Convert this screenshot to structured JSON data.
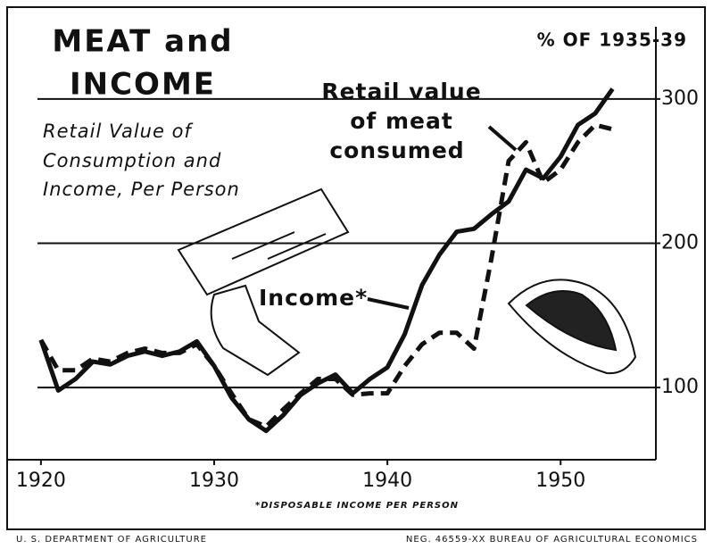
{
  "chart_data": {
    "type": "line",
    "title": [
      "MEAT and",
      "INCOME"
    ],
    "subtitle": [
      "Retail Value of",
      "Consumption and",
      "Income, Per Person"
    ],
    "y_axis_label": "% OF 1935-39",
    "footnote": "*DISPOSABLE INCOME PER PERSON",
    "source_left": "U. S. DEPARTMENT OF AGRICULTURE",
    "source_right": "NEG. 46559-XX   BUREAU OF AGRICULTURAL ECONOMICS",
    "x": [
      1920,
      1921,
      1922,
      1923,
      1924,
      1925,
      1926,
      1927,
      1928,
      1929,
      1930,
      1931,
      1932,
      1933,
      1934,
      1935,
      1936,
      1937,
      1938,
      1939,
      1940,
      1941,
      1942,
      1943,
      1944,
      1945,
      1946,
      1947,
      1948,
      1949,
      1950,
      1951,
      1952,
      1953
    ],
    "series": [
      {
        "name": [
          "Income*"
        ],
        "color": "#111",
        "dashed": false,
        "values": [
          133,
          98,
          106,
          118,
          116,
          122,
          125,
          122,
          125,
          132,
          115,
          93,
          78,
          70,
          81,
          95,
          103,
          109,
          96,
          106,
          114,
          137,
          171,
          192,
          208,
          210,
          220,
          229,
          251,
          245,
          260,
          282,
          290,
          307
        ]
      },
      {
        "name": [
          "Retail value",
          "of meat",
          "consumed"
        ],
        "color": "#111",
        "dashed": true,
        "values": [
          133,
          112,
          112,
          120,
          118,
          124,
          127,
          124,
          124,
          130,
          115,
          96,
          78,
          73,
          85,
          96,
          106,
          106,
          95,
          96,
          96,
          115,
          130,
          138,
          138,
          127,
          189,
          257,
          270,
          242,
          251,
          270,
          282,
          279
        ]
      }
    ],
    "xlim": [
      1919.8,
      1955.5
    ],
    "ylim": [
      50,
      350
    ],
    "xticks": [
      1920,
      1930,
      1940,
      1950
    ],
    "yticks": [
      100,
      200,
      300
    ],
    "grid": true
  }
}
